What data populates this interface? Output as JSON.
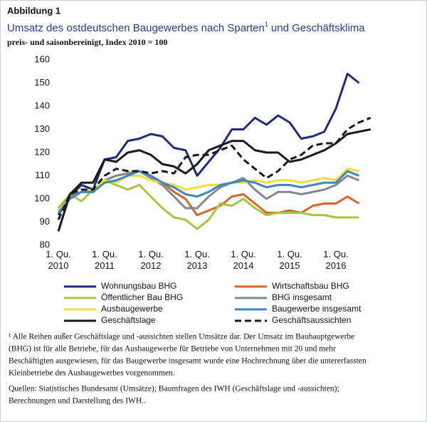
{
  "chart_data": {
    "type": "line",
    "figure_label": "Abbildung 1",
    "title_parts": [
      "Umsatz des ostdeutschen Baugewerbes nach Sparten",
      "1",
      "und Geschäftsklima"
    ],
    "subtitle": "preis- und saisonbereinigt, Index 2010 = 100",
    "categories": [
      "1. Qu. 2010",
      null,
      null,
      null,
      "1. Qu. 2011",
      null,
      null,
      null,
      "1. Qu. 2012",
      null,
      null,
      null,
      "1. Qu. 2013",
      null,
      null,
      null,
      "1. Qu. 2014",
      null,
      null,
      null,
      "1. Qu. 2015",
      null,
      null,
      null,
      "1. Qu. 2016",
      null,
      null,
      null
    ],
    "ylim": [
      80,
      160
    ],
    "yticks": [
      80,
      90,
      100,
      110,
      120,
      130,
      140,
      150,
      160
    ],
    "grid": false,
    "series": [
      {
        "name": "Wohnungsbau BHG",
        "color": "#1f2a80",
        "values": [
          93,
          101,
          106,
          104,
          117,
          118,
          125,
          126,
          128,
          127,
          122,
          121,
          110,
          116,
          122,
          130,
          130,
          135,
          132,
          136,
          133,
          126,
          127,
          129,
          139,
          154,
          150,
          null
        ]
      },
      {
        "name": "Wirtschaftsbau BHG",
        "color": "#d8642a",
        "values": [
          95,
          101,
          103,
          103,
          108,
          110,
          111,
          112,
          110,
          107,
          103,
          100,
          93,
          95,
          97,
          101,
          102,
          98,
          94,
          94,
          95,
          94,
          97,
          98,
          98,
          101,
          98,
          null
        ]
      },
      {
        "name": "Öffentlicher Bau BHG",
        "color": "#a8c43a",
        "values": [
          96,
          102,
          99,
          104,
          108,
          106,
          104,
          106,
          101,
          96,
          92,
          91,
          87,
          91,
          98,
          97,
          100,
          96,
          93,
          94,
          94,
          94,
          93,
          93,
          92,
          92,
          92,
          null
        ]
      },
      {
        "name": "BHG insgesamt",
        "color": "#808890",
        "values": [
          95,
          101,
          103,
          103,
          108,
          110,
          111,
          112,
          109,
          106,
          101,
          96,
          96,
          101,
          105,
          107,
          109,
          104,
          100,
          103,
          103,
          102,
          103,
          104,
          106,
          110,
          108,
          null
        ]
      },
      {
        "name": "Ausbaugewerbe",
        "color": "#f0df3a",
        "values": [
          95,
          100,
          103,
          104,
          108,
          107,
          110,
          110,
          108,
          107,
          106,
          104,
          105,
          106,
          106,
          107,
          107,
          108,
          107,
          108,
          108,
          107,
          108,
          109,
          108,
          113,
          112,
          null
        ]
      },
      {
        "name": "Baugewerbe insgesamt",
        "color": "#3a86c8",
        "values": [
          94,
          100,
          103,
          103,
          107,
          108,
          110,
          112,
          110,
          107,
          105,
          102,
          101,
          103,
          106,
          107,
          108,
          107,
          105,
          106,
          106,
          105,
          106,
          107,
          107,
          112,
          110,
          null
        ]
      },
      {
        "name": "Geschäftslage",
        "color": "#1a1a1a",
        "values": [
          86,
          102,
          107,
          107,
          117,
          116,
          120,
          121,
          119,
          115,
          114,
          111,
          115,
          121,
          123,
          125,
          125,
          121,
          120,
          120,
          116,
          117,
          119,
          121,
          124,
          128,
          129,
          130
        ]
      },
      {
        "name": "Geschäftsaussichten",
        "color": "#1a1a1a",
        "dashed": true,
        "values": [
          91,
          102,
          104,
          104,
          110,
          113,
          112,
          112,
          111,
          112,
          111,
          118,
          119,
          119,
          121,
          123,
          117,
          113,
          109,
          112,
          117,
          119,
          123,
          124,
          124,
          130,
          133,
          135
        ]
      }
    ],
    "footnote_lines": [
      "¹ Alle Reihen außer Geschäftslage und -aussichten stellen Umsätze dar. Der Umsatz im Bauhauptgewerbe",
      "(BHG) ist für alle Betriebe, für das Ausbaugewerbe für Betriebe von Unternehmen mit 20 und mehr",
      "Beschäftigten ausgewiesen, für das Baugewerbe insgesamt wurde eine Hochrechnung über die untererfassten",
      "Kleinbetriebe des Ausbaugewerbes vorgenommen."
    ],
    "source_lines": [
      "Quellen: Statistisches Bundesamt (Umsätze); Baumfragen des IWH (Geschäftslage und -aussichten);",
      "Berechnungen und Darstellung des IWH.."
    ]
  }
}
